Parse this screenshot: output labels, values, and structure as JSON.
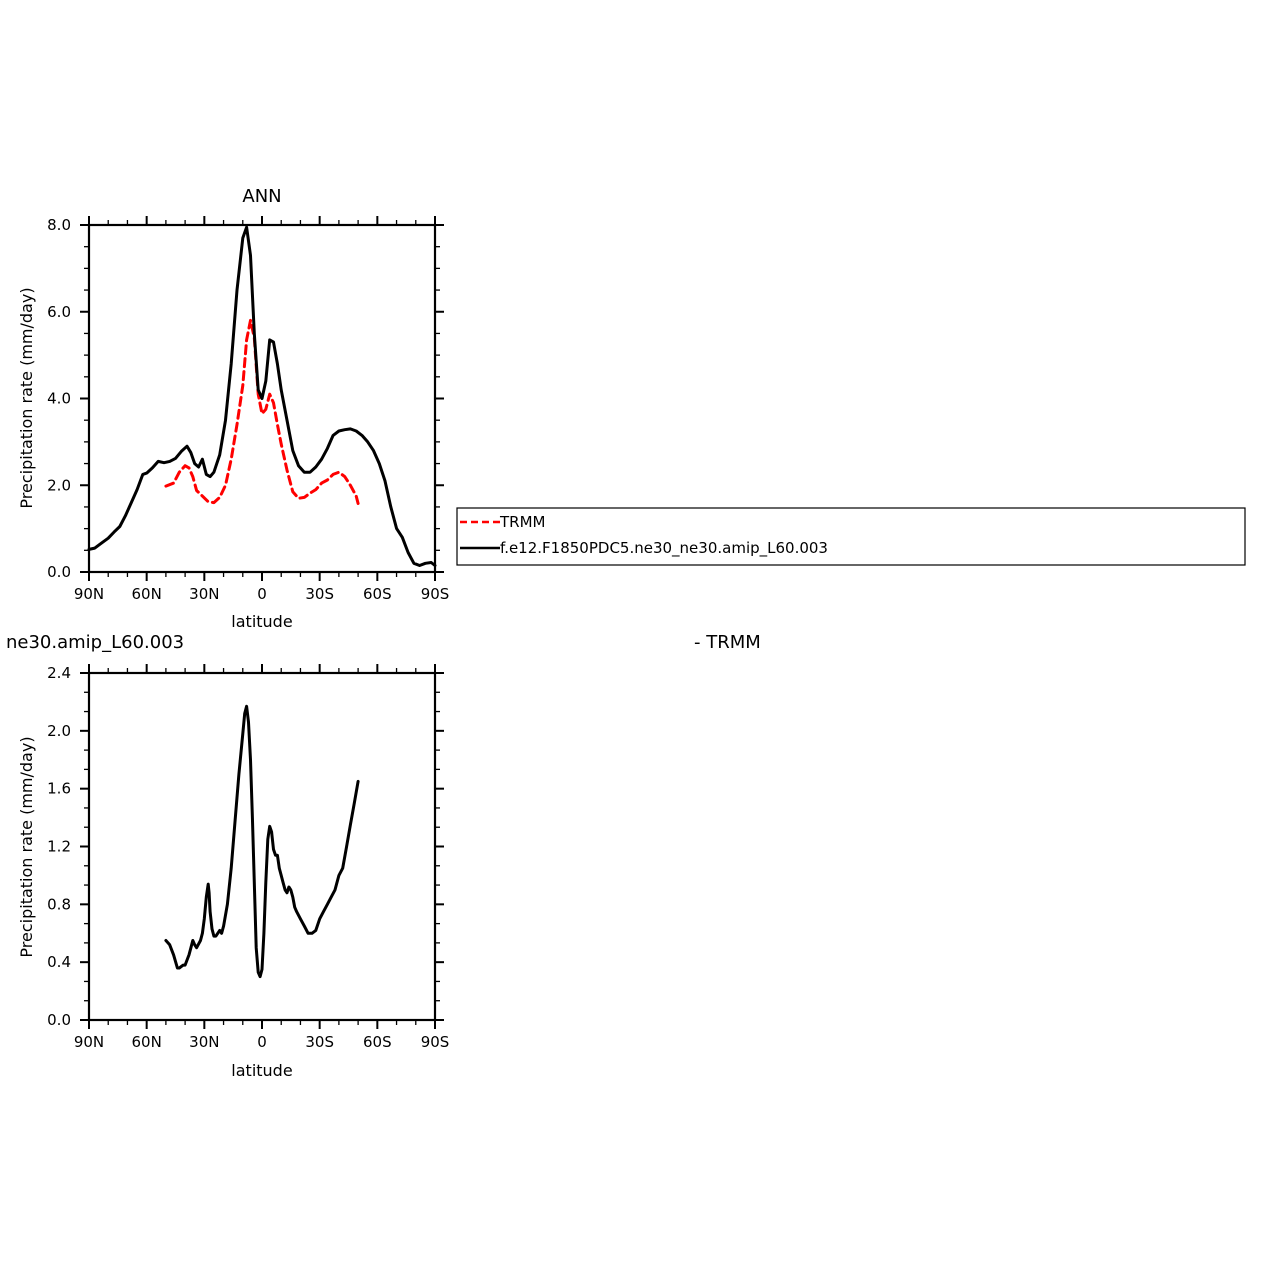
{
  "chart_data": [
    {
      "type": "line",
      "title": "ANN",
      "xlabel": "latitude",
      "ylabel": "Precipitation rate (mm/day)",
      "xlim": [
        90,
        -90
      ],
      "ylim": [
        0,
        8
      ],
      "xticks": [
        {
          "value": 90,
          "label": "90N"
        },
        {
          "value": 60,
          "label": "60N"
        },
        {
          "value": 30,
          "label": "30N"
        },
        {
          "value": 0,
          "label": "0"
        },
        {
          "value": -30,
          "label": "30S"
        },
        {
          "value": -60,
          "label": "60S"
        },
        {
          "value": -90,
          "label": "90S"
        }
      ],
      "yticks": [
        {
          "value": 0,
          "label": "0.0"
        },
        {
          "value": 2,
          "label": "2.0"
        },
        {
          "value": 4,
          "label": "4.0"
        },
        {
          "value": 6,
          "label": "6.0"
        },
        {
          "value": 8,
          "label": "8.0"
        }
      ],
      "legend_position": "right",
      "series": [
        {
          "name": "TRMM",
          "color": "#ff0000",
          "dash": "dashed",
          "x": [
            50,
            46,
            43,
            40,
            38,
            36,
            34,
            31,
            28,
            25,
            22,
            19,
            16,
            13,
            10,
            8,
            6,
            4,
            2,
            0,
            -2,
            -4,
            -6,
            -8,
            -10,
            -13,
            -16,
            -19,
            -22,
            -25,
            -28,
            -31,
            -34,
            -37,
            -40,
            -43,
            -46,
            -49,
            -50
          ],
          "y": [
            1.98,
            2.05,
            2.3,
            2.45,
            2.4,
            2.2,
            1.88,
            1.75,
            1.62,
            1.6,
            1.72,
            2.0,
            2.6,
            3.4,
            4.3,
            5.35,
            5.8,
            5.4,
            4.1,
            3.65,
            3.75,
            4.1,
            3.9,
            3.4,
            2.95,
            2.35,
            1.85,
            1.7,
            1.72,
            1.82,
            1.9,
            2.05,
            2.12,
            2.25,
            2.3,
            2.2,
            2.0,
            1.75,
            1.58
          ]
        },
        {
          "name": "f.e12.F1850PDC5.ne30_ne30.amip_L60.003",
          "color": "#000000",
          "dash": "solid",
          "x": [
            90,
            87,
            84,
            80,
            77,
            74,
            71,
            68,
            65,
            62,
            60,
            57,
            54,
            51,
            48,
            45,
            42,
            39,
            37,
            35,
            33,
            31,
            29,
            27,
            25,
            22,
            19,
            16,
            13,
            10,
            8,
            6,
            4,
            2,
            0,
            -2,
            -4,
            -6,
            -8,
            -10,
            -13,
            -16,
            -19,
            -22,
            -25,
            -28,
            -31,
            -34,
            -37,
            -40,
            -43,
            -46,
            -49,
            -52,
            -55,
            -58,
            -61,
            -64,
            -67,
            -70,
            -73,
            -76,
            -79,
            -82,
            -85,
            -88,
            -90
          ],
          "y": [
            0.52,
            0.55,
            0.65,
            0.78,
            0.92,
            1.05,
            1.3,
            1.6,
            1.9,
            2.25,
            2.28,
            2.4,
            2.55,
            2.52,
            2.55,
            2.62,
            2.78,
            2.9,
            2.75,
            2.5,
            2.42,
            2.6,
            2.25,
            2.2,
            2.3,
            2.7,
            3.5,
            4.8,
            6.5,
            7.7,
            7.95,
            7.3,
            5.5,
            4.2,
            4.0,
            4.4,
            5.35,
            5.3,
            4.8,
            4.2,
            3.5,
            2.8,
            2.45,
            2.3,
            2.3,
            2.42,
            2.6,
            2.85,
            3.15,
            3.25,
            3.28,
            3.3,
            3.25,
            3.15,
            3.0,
            2.8,
            2.5,
            2.1,
            1.5,
            1.0,
            0.8,
            0.45,
            0.2,
            0.15,
            0.2,
            0.22,
            0.15
          ]
        }
      ]
    },
    {
      "type": "line",
      "title": "ne30.amip_L60.003",
      "subtitle": "- TRMM",
      "xlabel": "latitude",
      "ylabel": "Precipitation rate (mm/day)",
      "xlim": [
        90,
        -90
      ],
      "ylim": [
        0,
        2.4
      ],
      "xticks": [
        {
          "value": 90,
          "label": "90N"
        },
        {
          "value": 60,
          "label": "60N"
        },
        {
          "value": 30,
          "label": "30N"
        },
        {
          "value": 0,
          "label": "0"
        },
        {
          "value": -30,
          "label": "30S"
        },
        {
          "value": -60,
          "label": "60S"
        },
        {
          "value": -90,
          "label": "90S"
        }
      ],
      "yticks": [
        {
          "value": 0,
          "label": "0.0"
        },
        {
          "value": 0.4,
          "label": "0.4"
        },
        {
          "value": 0.8,
          "label": "0.8"
        },
        {
          "value": 1.2,
          "label": "1.2"
        },
        {
          "value": 1.6,
          "label": "1.6"
        },
        {
          "value": 2.0,
          "label": "2.0"
        },
        {
          "value": 2.4,
          "label": "2.4"
        }
      ],
      "series": [
        {
          "color": "#000000",
          "dash": "solid",
          "x": [
            50,
            48,
            46,
            44,
            43,
            41,
            40,
            38,
            37,
            36,
            35,
            34,
            32,
            31,
            30,
            29,
            28,
            27.5,
            27,
            26,
            25,
            24,
            22,
            21,
            20,
            18,
            16,
            14,
            12,
            10,
            9,
            8,
            7,
            6,
            5,
            4,
            3,
            2,
            1,
            0,
            -1,
            -2,
            -3,
            -4,
            -5,
            -6,
            -7,
            -8,
            -9,
            -10,
            -11,
            -12,
            -13,
            -14,
            -15,
            -16,
            -17,
            -18,
            -20,
            -22,
            -24,
            -26,
            -28,
            -30,
            -32,
            -34,
            -36,
            -38,
            -40,
            -42,
            -44,
            -46,
            -48,
            -50
          ],
          "y": [
            0.55,
            0.52,
            0.45,
            0.36,
            0.36,
            0.38,
            0.38,
            0.45,
            0.5,
            0.55,
            0.52,
            0.5,
            0.55,
            0.6,
            0.7,
            0.85,
            0.94,
            0.88,
            0.75,
            0.63,
            0.58,
            0.58,
            0.62,
            0.6,
            0.65,
            0.8,
            1.05,
            1.38,
            1.7,
            1.98,
            2.12,
            2.17,
            2.06,
            1.8,
            1.4,
            0.95,
            0.5,
            0.33,
            0.3,
            0.35,
            0.6,
            0.95,
            1.25,
            1.34,
            1.3,
            1.18,
            1.14,
            1.14,
            1.05,
            1.0,
            0.95,
            0.9,
            0.88,
            0.92,
            0.9,
            0.85,
            0.78,
            0.75,
            0.7,
            0.65,
            0.6,
            0.6,
            0.62,
            0.7,
            0.75,
            0.8,
            0.85,
            0.9,
            1.0,
            1.05,
            1.2,
            1.35,
            1.5,
            1.65
          ]
        }
      ]
    }
  ]
}
